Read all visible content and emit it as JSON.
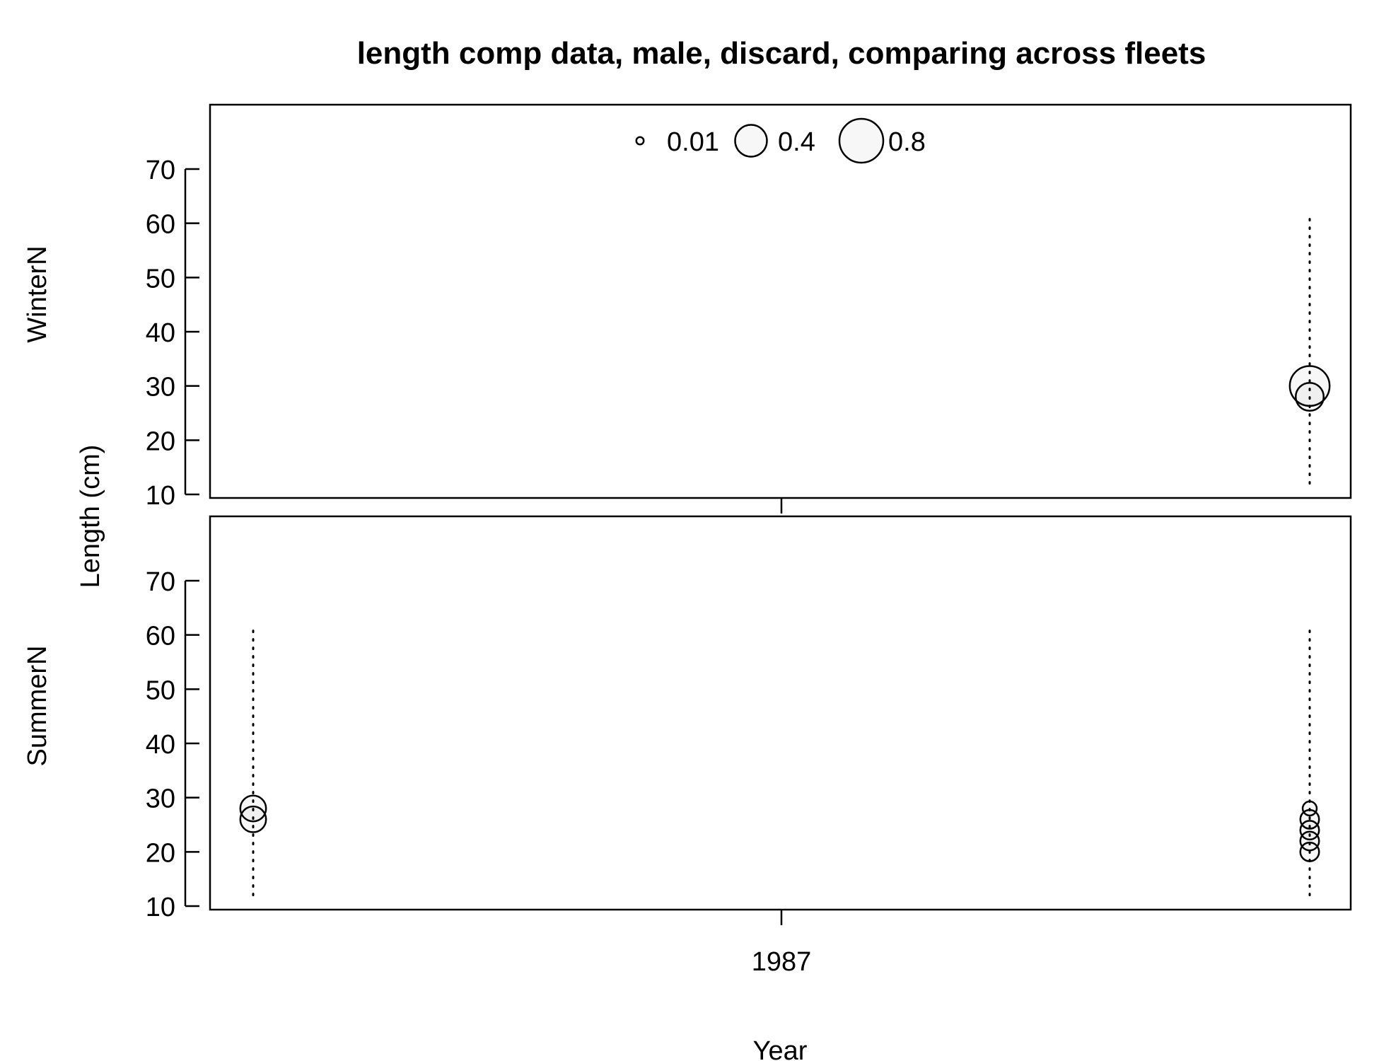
{
  "chart_data": {
    "type": "scatter",
    "title": "length comp data, male, discard, comparing across fleets",
    "xlabel": "Year",
    "ylabel": "Length (cm)",
    "x_ticks": [
      "1987"
    ],
    "x_range": [
      1986.5,
      1987.5
    ],
    "y_ticks": [
      10,
      20,
      30,
      40,
      50,
      60,
      70
    ],
    "ylim": [
      10,
      80
    ],
    "bubble_scale": "proportion",
    "legend": {
      "placement": "top-center",
      "entries": [
        {
          "label": "0.01",
          "value": 0.01
        },
        {
          "label": "0.4",
          "value": 0.4
        },
        {
          "label": "0.8",
          "value": 0.8
        }
      ]
    },
    "panels": [
      {
        "name": "WinterN",
        "guides": [
          {
            "x": 1987.5,
            "y_range": [
              12,
              62
            ]
          }
        ],
        "points": [
          {
            "x": 1987.5,
            "y": 28,
            "value": 0.3
          },
          {
            "x": 1987.5,
            "y": 30,
            "value": 0.65
          }
        ]
      },
      {
        "name": "SummerN",
        "guides": [
          {
            "x": 1986.5,
            "y_range": [
              12,
              62
            ]
          },
          {
            "x": 1987.5,
            "y_range": [
              12,
              62
            ]
          }
        ],
        "points": [
          {
            "x": 1986.5,
            "y": 26,
            "value": 0.25
          },
          {
            "x": 1986.5,
            "y": 28,
            "value": 0.25
          },
          {
            "x": 1987.5,
            "y": 20,
            "value": 0.12
          },
          {
            "x": 1987.5,
            "y": 22,
            "value": 0.12
          },
          {
            "x": 1987.5,
            "y": 24,
            "value": 0.12
          },
          {
            "x": 1987.5,
            "y": 26,
            "value": 0.12
          },
          {
            "x": 1987.5,
            "y": 28,
            "value": 0.06
          }
        ]
      }
    ]
  }
}
